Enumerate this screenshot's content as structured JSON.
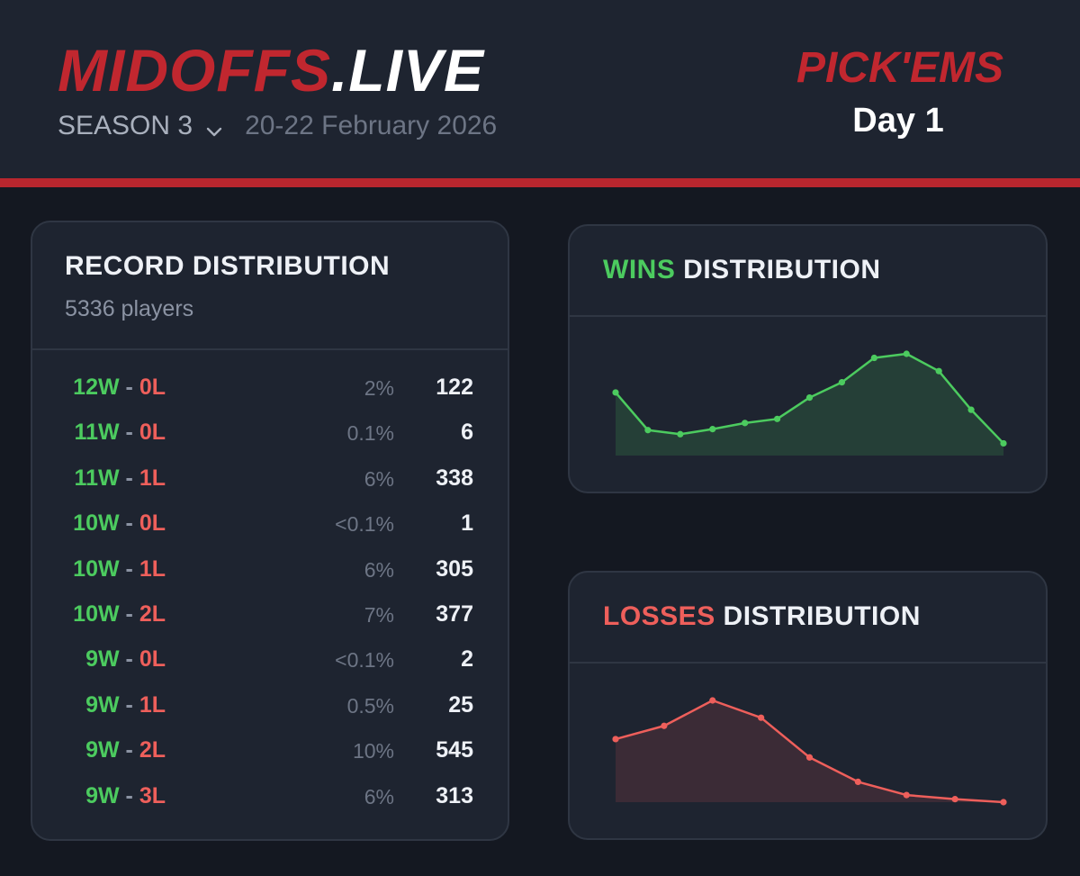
{
  "header": {
    "brand_red": "MIDOFFS",
    "brand_white": ".LIVE",
    "season_label": "SEASON 3",
    "dates": "20-22 February 2026",
    "pickems": "PICK'EMS",
    "day": "Day 1"
  },
  "colors": {
    "win": "#4ccb5f",
    "loss": "#ee5f5b",
    "brand": "#c1272f"
  },
  "icons": {
    "season_dropdown": "chevron-down-icon"
  },
  "record": {
    "title": "RECORD DISTRIBUTION",
    "players": "5336 players",
    "rows": [
      {
        "w": "12W",
        "sep": "-",
        "l": "0L",
        "pct": "2%",
        "count": "122"
      },
      {
        "w": "11W",
        "sep": "-",
        "l": "0L",
        "pct": "0.1%",
        "count": "6"
      },
      {
        "w": "11W",
        "sep": "-",
        "l": "1L",
        "pct": "6%",
        "count": "338"
      },
      {
        "w": "10W",
        "sep": "-",
        "l": "0L",
        "pct": "<0.1%",
        "count": "1"
      },
      {
        "w": "10W",
        "sep": "-",
        "l": "1L",
        "pct": "6%",
        "count": "305"
      },
      {
        "w": "10W",
        "sep": "-",
        "l": "2L",
        "pct": "7%",
        "count": "377"
      },
      {
        "w": "9W",
        "sep": "-",
        "l": "0L",
        "pct": "<0.1%",
        "count": "2"
      },
      {
        "w": "9W",
        "sep": "-",
        "l": "1L",
        "pct": "0.5%",
        "count": "25"
      },
      {
        "w": "9W",
        "sep": "-",
        "l": "2L",
        "pct": "10%",
        "count": "545"
      },
      {
        "w": "9W",
        "sep": "-",
        "l": "3L",
        "pct": "6%",
        "count": "313"
      }
    ]
  },
  "wins_chart": {
    "title_accent": "WINS",
    "title_rest": " DISTRIBUTION"
  },
  "losses_chart": {
    "title_accent": "LOSSES",
    "title_rest": " DISTRIBUTION"
  },
  "chart_data": [
    {
      "type": "area",
      "title": "WINS DISTRIBUTION",
      "x": [
        0,
        1,
        2,
        3,
        4,
        5,
        6,
        7,
        8,
        9,
        10,
        11,
        12
      ],
      "values": [
        0.62,
        0.25,
        0.21,
        0.26,
        0.32,
        0.36,
        0.57,
        0.72,
        0.96,
        1.0,
        0.83,
        0.45,
        0.12
      ],
      "ylim": [
        0,
        1
      ],
      "grid": false,
      "color": "#4ccb5f"
    },
    {
      "type": "area",
      "title": "LOSSES DISTRIBUTION",
      "x": [
        0,
        1,
        2,
        3,
        4,
        5,
        6,
        7,
        8
      ],
      "values": [
        0.62,
        0.75,
        1.0,
        0.83,
        0.44,
        0.2,
        0.07,
        0.03,
        0.0
      ],
      "ylim": [
        0,
        1
      ],
      "grid": false,
      "color": "#ee5f5b"
    }
  ]
}
